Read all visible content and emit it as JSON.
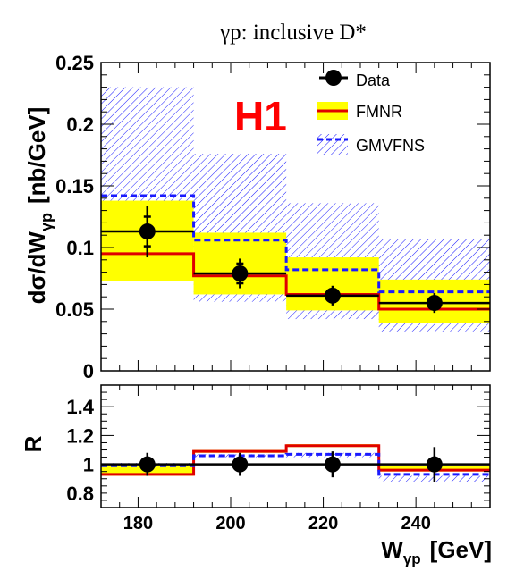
{
  "title_text": "γp:  inclusive D*",
  "brand": "H1",
  "legend": {
    "data_label": "Data",
    "fmnr_label": "FMNR",
    "gmvfns_label": "GMVFNS"
  },
  "colors": {
    "data": "#000000",
    "fmnr_line": "#e00000",
    "fmnr_band": "#ffff00",
    "gmvfns": "#1a1aff",
    "brand": "#ff0000"
  },
  "chart_data": [
    {
      "type": "step",
      "ylabel": "dσ/dW",
      "ylabel_sub": "γp",
      "ylabel_unit": "[nb/GeV]",
      "ylim": [
        0,
        0.25
      ],
      "xlim": [
        172,
        256
      ],
      "y_ticks": [
        "0",
        "0.05",
        "0.1",
        "0.15",
        "0.2",
        "0.25"
      ],
      "bins": [
        [
          172,
          192
        ],
        [
          192,
          212
        ],
        [
          212,
          232
        ],
        [
          232,
          256
        ]
      ],
      "data": {
        "x": [
          182,
          202,
          222,
          244
        ],
        "y": [
          0.113,
          0.079,
          0.061,
          0.055
        ],
        "stat_err": [
          0.012,
          0.008,
          0.005,
          0.005
        ],
        "tot_err": [
          0.021,
          0.012,
          0.008,
          0.008
        ]
      },
      "fmnr": {
        "central": [
          0.095,
          0.077,
          0.062,
          0.05
        ],
        "low": [
          0.073,
          0.062,
          0.049,
          0.039
        ],
        "high": [
          0.138,
          0.112,
          0.092,
          0.074
        ]
      },
      "gmvfns": {
        "central": [
          0.142,
          0.106,
          0.082,
          0.064
        ],
        "low": [
          0.073,
          0.056,
          0.042,
          0.032
        ],
        "high": [
          0.23,
          0.176,
          0.136,
          0.107
        ]
      }
    },
    {
      "type": "step",
      "ylabel": "R",
      "xlabel": "W",
      "xlabel_sub": "γp",
      "xlabel_unit": "[GeV]",
      "ylim": [
        0.7,
        1.55
      ],
      "xlim": [
        172,
        256
      ],
      "y_ticks": [
        "0.8",
        "1",
        "1.2",
        "1.4"
      ],
      "x_ticks": [
        "180",
        "200",
        "220",
        "240"
      ],
      "data": {
        "x": [
          182,
          202,
          222,
          244
        ],
        "y": [
          1.0,
          1.0,
          1.0,
          1.0
        ],
        "err": [
          0.08,
          0.08,
          0.09,
          0.12
        ]
      },
      "fmnr": {
        "central": [
          0.93,
          1.09,
          1.13,
          0.96
        ],
        "low": [
          0.92,
          1.08,
          1.12,
          0.95
        ],
        "high": [
          0.99,
          1.1,
          1.14,
          0.99
        ]
      },
      "gmvfns": {
        "central": [
          0.99,
          1.06,
          1.07,
          0.93
        ],
        "low": [
          0.99,
          1.05,
          1.05,
          0.88
        ],
        "high": [
          1.01,
          1.07,
          1.08,
          0.92
        ]
      }
    }
  ]
}
